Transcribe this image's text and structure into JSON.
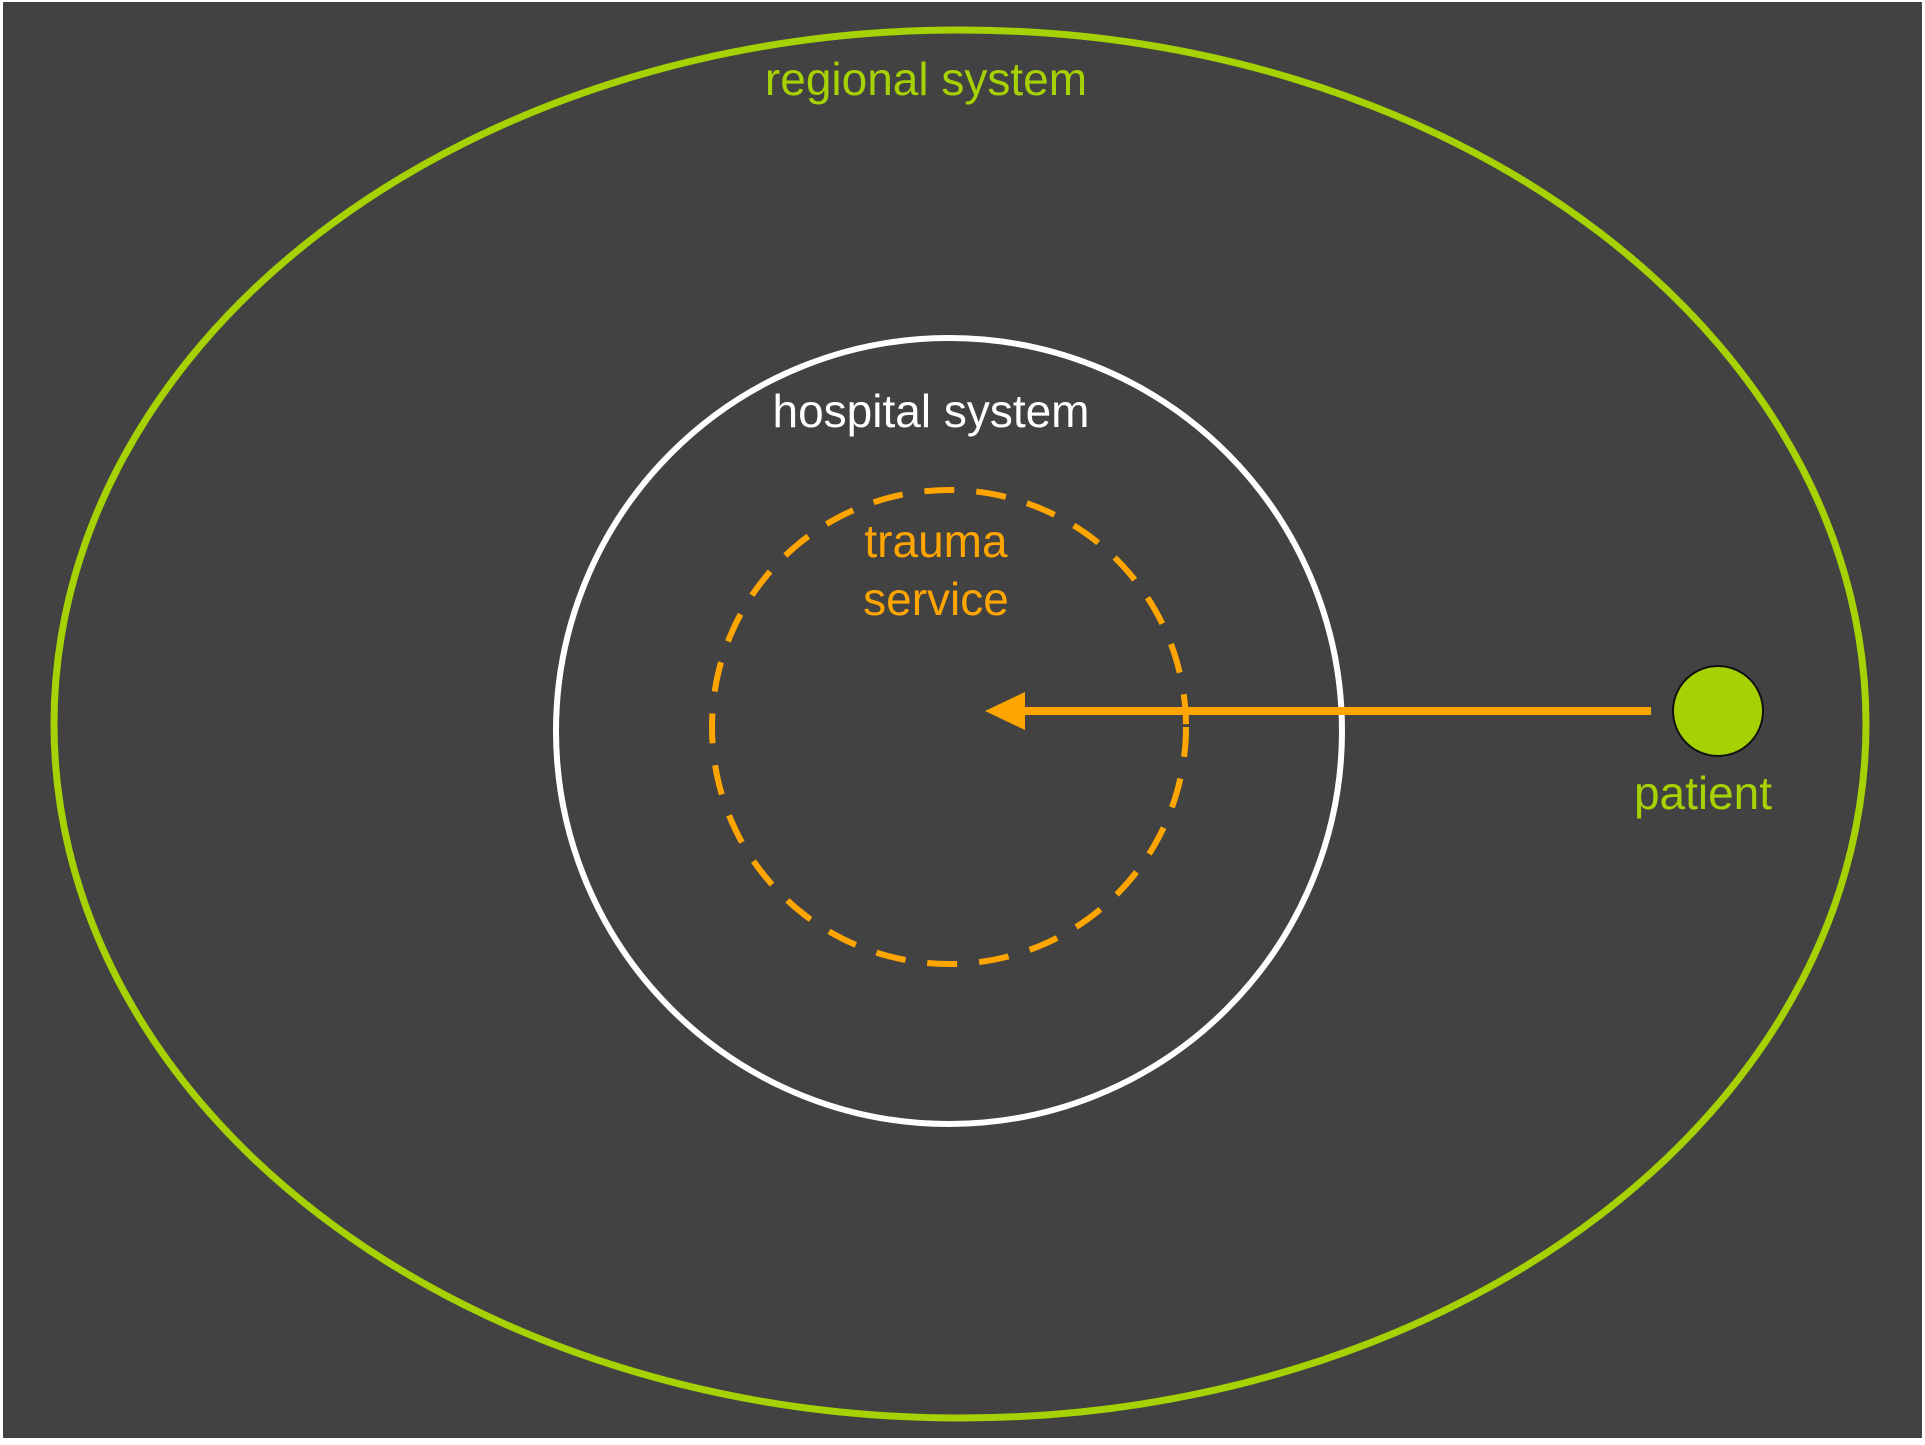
{
  "diagram": {
    "labels": {
      "regional": "regional system",
      "hospital": "hospital system",
      "trauma_line1": "trauma",
      "trauma_line2": "service",
      "patient": "patient"
    },
    "colors": {
      "background": "#424242",
      "regional": "#a6d103",
      "hospital": "#ffffff",
      "trauma": "#ffa500",
      "patient_fill": "#a6d103",
      "arrow": "#ffa500"
    },
    "icons": {
      "patient_marker": "patient-circle-icon",
      "arrow": "arrow-left-icon"
    }
  }
}
